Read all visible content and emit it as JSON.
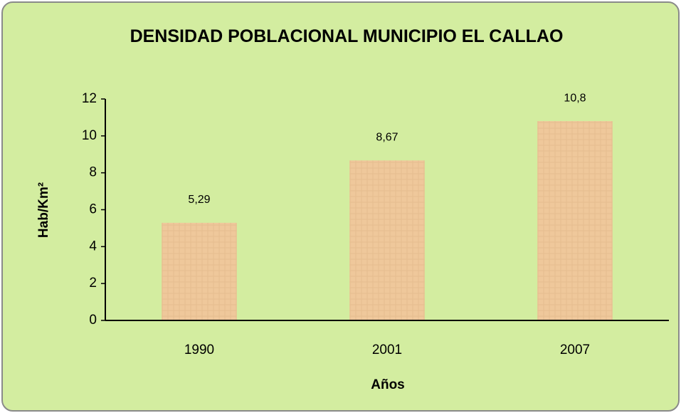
{
  "chart_data": {
    "type": "bar",
    "title": "DENSIDAD POBLACIONAL MUNICIPIO EL CALLAO",
    "xlabel": "Años",
    "ylabel": "Hab/Km²",
    "categories": [
      "1990",
      "2001",
      "2007"
    ],
    "values": [
      5.29,
      8.67,
      10.8
    ],
    "value_labels": [
      "5,29",
      "8,67",
      "10,8"
    ],
    "color": "#efc89b",
    "ylim": [
      0,
      12
    ],
    "yticks": [
      0,
      2,
      4,
      6,
      8,
      10,
      12
    ],
    "grid": false
  }
}
